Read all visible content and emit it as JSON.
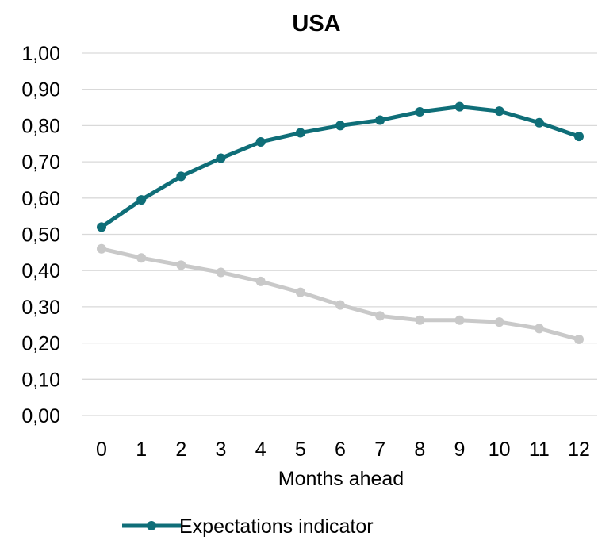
{
  "chart_data": {
    "type": "line",
    "title": "USA",
    "xlabel": "Months ahead",
    "ylabel": "",
    "x": [
      0,
      1,
      2,
      3,
      4,
      5,
      6,
      7,
      8,
      9,
      10,
      11,
      12
    ],
    "x_tick_labels": [
      "0",
      "1",
      "2",
      "3",
      "4",
      "5",
      "6",
      "7",
      "8",
      "9",
      "10",
      "11",
      "12"
    ],
    "ylim": [
      0,
      1
    ],
    "y_ticks": [
      0,
      0.1,
      0.2,
      0.3,
      0.4,
      0.5,
      0.6,
      0.7,
      0.8,
      0.9,
      1.0
    ],
    "y_tick_labels": [
      "0,00",
      "0,10",
      "0,20",
      "0,30",
      "0,40",
      "0,50",
      "0,60",
      "0,70",
      "0,80",
      "0,90",
      "1,00"
    ],
    "grid": true,
    "legend_position": "bottom",
    "series": [
      {
        "name": "Expectations indicator",
        "color": "#0f6e78",
        "values": [
          0.52,
          0.595,
          0.66,
          0.71,
          0.755,
          0.78,
          0.8,
          0.815,
          0.838,
          0.852,
          0.84,
          0.808,
          0.77
        ]
      },
      {
        "color": "#c9c9c9",
        "values": [
          0.46,
          0.435,
          0.415,
          0.395,
          0.37,
          0.34,
          0.305,
          0.275,
          0.263,
          0.263,
          0.258,
          0.24,
          0.21
        ]
      }
    ]
  }
}
